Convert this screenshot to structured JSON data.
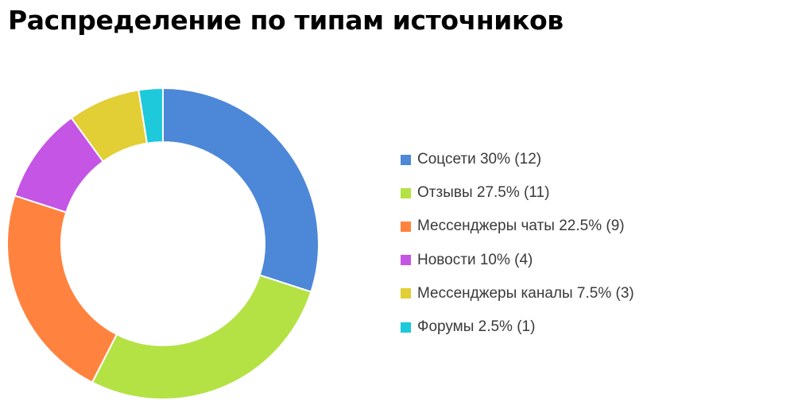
{
  "chart_data": {
    "type": "pie",
    "variant": "donut",
    "title": "Распределение по типам источников",
    "legend_position": "right",
    "slices": [
      {
        "label": "Соцсети 30% (12)",
        "category": "Соцсети",
        "percent": 30,
        "count": 12,
        "color": "#4D87D8"
      },
      {
        "label": "Отзывы 27.5% (11)",
        "category": "Отзывы",
        "percent": 27.5,
        "count": 11,
        "color": "#B4E245"
      },
      {
        "label": "Мессенджеры чаты 22.5% (9)",
        "category": "Мессенджеры чаты",
        "percent": 22.5,
        "count": 9,
        "color": "#FF833F"
      },
      {
        "label": "Новости 10% (4)",
        "category": "Новости",
        "percent": 10,
        "count": 4,
        "color": "#C455E5"
      },
      {
        "label": "Мессенджеры каналы 7.5% (3)",
        "category": "Мессенджеры каналы",
        "percent": 7.5,
        "count": 3,
        "color": "#E2CE35"
      },
      {
        "label": "Форумы 2.5% (1)",
        "category": "Форумы",
        "percent": 2.5,
        "count": 1,
        "color": "#1EC9DB"
      }
    ]
  }
}
